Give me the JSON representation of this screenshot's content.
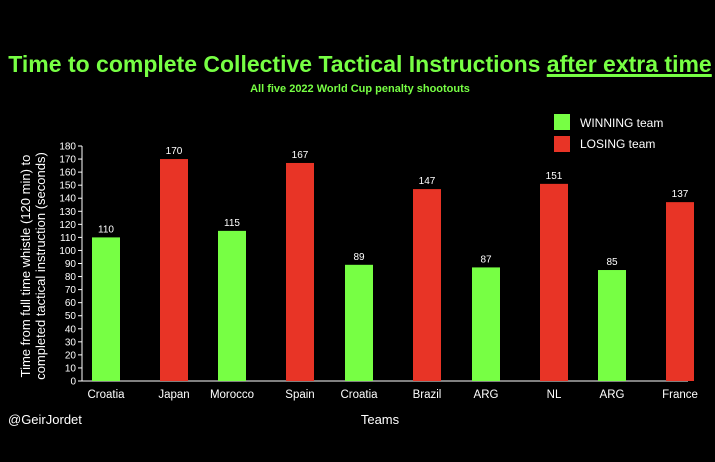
{
  "title_part1": "Time to complete Collective Tactical Instructions ",
  "title_part2": "after extra time",
  "subtitle": "All five 2022 World Cup penalty shootouts",
  "credit": "@GeirJordet",
  "colors": {
    "background": "#000000",
    "title": "#77ff44",
    "winning": "#77ff44",
    "losing": "#e83426"
  },
  "chart_data": {
    "type": "bar",
    "xlabel": "Teams",
    "ylabel_line1": "Time from full time whistle (120 min) to",
    "ylabel_line2": "completed tactical instruction (seconds)",
    "ylim": [
      0,
      180
    ],
    "ytick_step": 10,
    "legend_position": "top-right",
    "series": [
      {
        "name": "WINNING team",
        "color": "#77ff44"
      },
      {
        "name": "LOSING team",
        "color": "#e83426"
      }
    ],
    "groups": [
      {
        "bars": [
          {
            "label": "Croatia",
            "value": 110,
            "series": 0
          },
          {
            "label": "Japan",
            "value": 170,
            "series": 1
          }
        ]
      },
      {
        "bars": [
          {
            "label": "Morocco",
            "value": 115,
            "series": 0
          },
          {
            "label": "Spain",
            "value": 167,
            "series": 1
          }
        ]
      },
      {
        "bars": [
          {
            "label": "Croatia",
            "value": 89,
            "series": 0
          },
          {
            "label": "Brazil",
            "value": 147,
            "series": 1
          }
        ]
      },
      {
        "bars": [
          {
            "label": "ARG",
            "value": 87,
            "series": 0
          },
          {
            "label": "NL",
            "value": 151,
            "series": 1
          }
        ]
      },
      {
        "bars": [
          {
            "label": "ARG",
            "value": 85,
            "series": 0
          },
          {
            "label": "France",
            "value": 137,
            "series": 1
          }
        ]
      }
    ]
  }
}
